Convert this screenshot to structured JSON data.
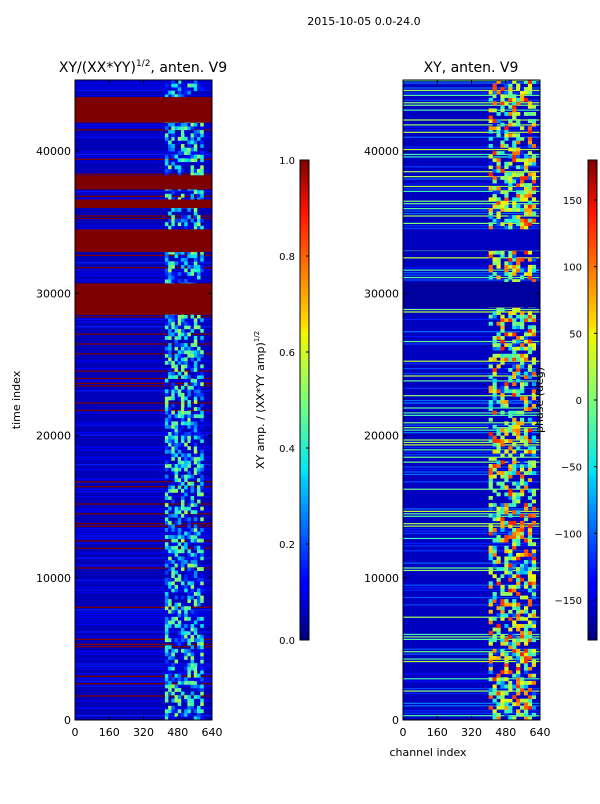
{
  "figure": {
    "suptitle": "2015-10-05 0.0-24.0"
  },
  "chart_data": [
    {
      "type": "heatmap",
      "title_main": "XY/(XX*YY)",
      "title_sup": "1/2",
      "title_tail": ", anten. V9",
      "xlabel": "",
      "ylabel": "time index",
      "xlim": [
        0,
        640
      ],
      "ylim": [
        0,
        45000
      ],
      "x_ticks": [
        0,
        160,
        320,
        480,
        640
      ],
      "y_ticks": [
        0,
        10000,
        20000,
        30000,
        40000
      ],
      "x_tick_labels": [
        "0",
        "160",
        "320",
        "480",
        "640"
      ],
      "y_tick_labels": [
        "0",
        "10000",
        "20000",
        "30000",
        "40000"
      ],
      "colormap": "jet",
      "background_value": 0.05,
      "active_channel_band": [
        420,
        600
      ],
      "saturated_blocks": [
        {
          "t0": 42000,
          "t1": 43800,
          "value": 1.0
        },
        {
          "t0": 37300,
          "t1": 38300,
          "value": 1.0
        },
        {
          "t0": 36000,
          "t1": 36600,
          "value": 1.0
        },
        {
          "t0": 32900,
          "t1": 34500,
          "value": 1.0
        },
        {
          "t0": 28500,
          "t1": 30700,
          "value": 1.0
        }
      ],
      "colorbar": {
        "label_main": "XY amp. / (XX*YY amp)",
        "label_sup": "1/2",
        "range": [
          0.0,
          1.0
        ],
        "ticks": [
          0.0,
          0.2,
          0.4,
          0.6,
          0.8,
          1.0
        ],
        "tick_labels": [
          "0.0",
          "0.2",
          "0.4",
          "0.6",
          "0.8",
          "1.0"
        ]
      }
    },
    {
      "type": "heatmap",
      "title": "XY, anten. V9",
      "xlabel": "channel index",
      "ylabel": "",
      "xlim": [
        0,
        640
      ],
      "ylim": [
        0,
        45000
      ],
      "x_ticks": [
        0,
        160,
        320,
        480,
        640
      ],
      "y_ticks": [
        0,
        10000,
        20000,
        30000,
        40000
      ],
      "x_tick_labels": [
        "0",
        "160",
        "320",
        "480",
        "640"
      ],
      "y_tick_labels": [
        "0",
        "10000",
        "20000",
        "30000",
        "40000"
      ],
      "colormap": "jet",
      "background_value": -160,
      "active_channel_band": [
        400,
        620
      ],
      "uniform_blocks": [
        {
          "t0": 29000,
          "t1": 30800,
          "value": -170
        },
        {
          "t0": 33000,
          "t1": 34500,
          "value": -160
        }
      ],
      "colorbar": {
        "label": "phase (deg)",
        "range": [
          -180,
          180
        ],
        "ticks": [
          -150,
          -100,
          -50,
          0,
          50,
          100,
          150
        ],
        "tick_labels": [
          "−150",
          "−100",
          "−50",
          "0",
          "50",
          "100",
          "150"
        ]
      }
    }
  ]
}
